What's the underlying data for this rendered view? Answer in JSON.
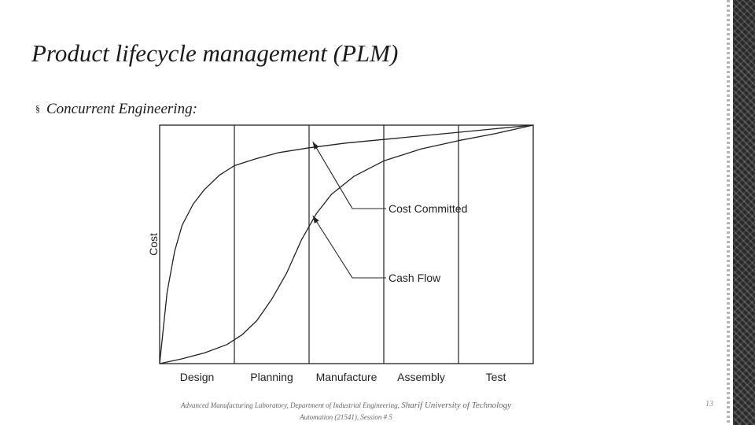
{
  "slide": {
    "title": "Product lifecycle management (PLM)",
    "bullet_marker": "§",
    "bullet": "Concurrent Engineering:",
    "footer_line1": "Advanced Manufacturing Laboratory, Department of Industrial Engineering,",
    "footer_school": "Sharif University of Technology",
    "footer_line2": "Automation (21541), Session # 5",
    "page_number": "13"
  },
  "chart_data": {
    "type": "line",
    "title": "",
    "ylabel": "Cost",
    "xlabel": "",
    "categories": [
      "Design",
      "Planning",
      "Manufacture",
      "Assembly",
      "Test"
    ],
    "xlim": [
      0,
      5
    ],
    "ylim": [
      0,
      1
    ],
    "grid": false,
    "series": [
      {
        "name": "Cost Committed",
        "x": [
          0,
          0.1,
          0.2,
          0.3,
          0.45,
          0.6,
          0.8,
          1.0,
          1.3,
          1.6,
          2.0,
          2.5,
          3.0,
          3.5,
          4.0,
          4.5,
          5.0
        ],
        "y": [
          0,
          0.3,
          0.47,
          0.58,
          0.67,
          0.73,
          0.79,
          0.83,
          0.86,
          0.885,
          0.905,
          0.925,
          0.94,
          0.955,
          0.97,
          0.985,
          1.0
        ]
      },
      {
        "name": "Cash Flow",
        "x": [
          0,
          0.3,
          0.6,
          0.9,
          1.1,
          1.3,
          1.5,
          1.7,
          1.9,
          2.1,
          2.3,
          2.6,
          3.0,
          3.5,
          4.0,
          4.5,
          5.0
        ],
        "y": [
          0,
          0.02,
          0.045,
          0.08,
          0.12,
          0.18,
          0.27,
          0.38,
          0.52,
          0.63,
          0.71,
          0.785,
          0.85,
          0.9,
          0.935,
          0.965,
          1.0
        ]
      }
    ],
    "annotations": [
      {
        "text": "Cost Committed",
        "series": "Cost Committed",
        "point_x": 2.05,
        "point_y": 0.93
      },
      {
        "text": "Cash Flow",
        "series": "Cash Flow",
        "point_x": 2.05,
        "point_y": 0.62
      }
    ]
  }
}
